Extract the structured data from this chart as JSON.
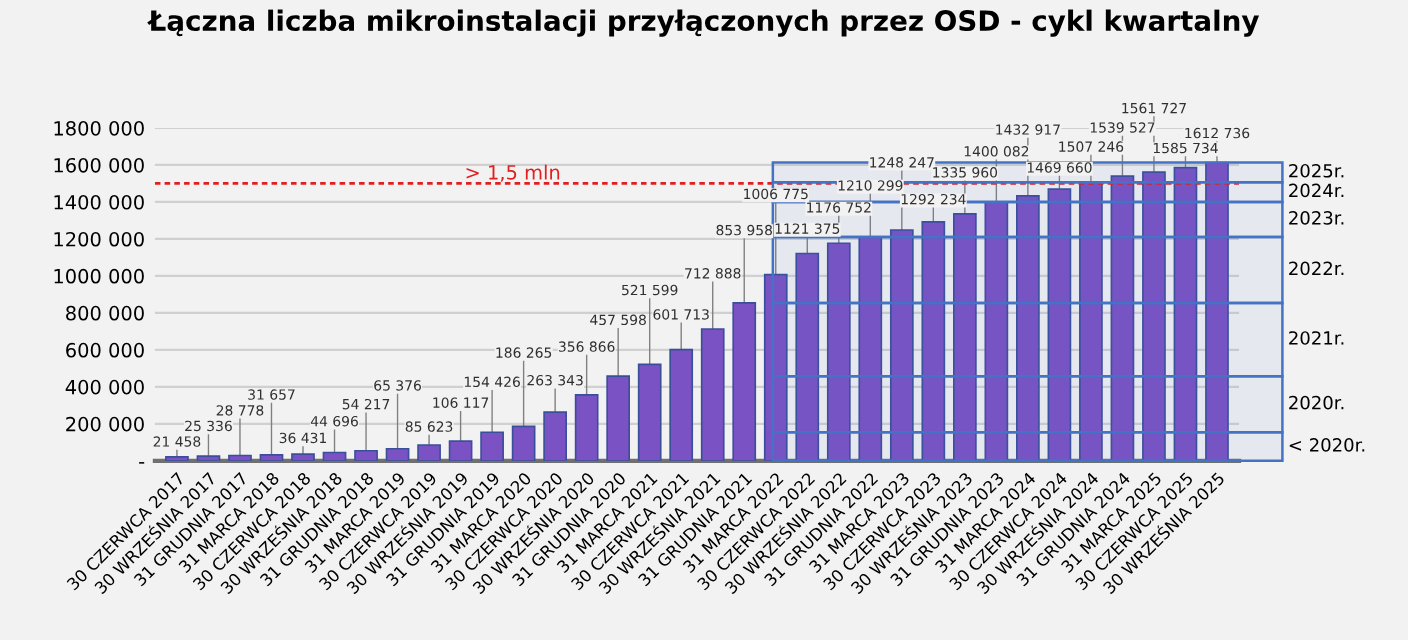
{
  "chart_data": {
    "type": "bar",
    "title": "Łączna liczba mikroinstalacji przyłączonych przez OSD - cykl kwartalny",
    "categories": [
      "30 CZERWCA 2017",
      "30 WRZEŚNIA 2017",
      "31 GRUDNIA 2017",
      "31 MARCA 2018",
      "30 CZERWCA 2018",
      "30 WRZEŚNIA 2018",
      "31 GRUDNIA 2018",
      "31 MARCA 2019",
      "30 CZERWCA 2019",
      "30 WRZEŚNIA 2019",
      "31 GRUDNIA 2019",
      "31 MARCA 2020",
      "30 CZERWCA 2020",
      "30 WRZEŚNIA 2020",
      "31 GRUDNIA 2020",
      "31 MARCA 2021",
      "30 CZERWCA 2021",
      "30 WRZEŚNIA 2021",
      "31 GRUDNIA 2021",
      "31 MARCA 2022",
      "30 CZERWCA 2022",
      "30 WRZEŚNIA 2022",
      "31 GRUDNIA 2022",
      "31 MARCA 2023",
      "30 CZERWCA 2023",
      "30 WRZEŚNIA 2023",
      "31 GRUDNIA 2023",
      "31 MARCA 2024",
      "30 CZERWCA 2024",
      "30 WRZEŚNIA 2024",
      "31 GRUDNIA 2024",
      "31 MARCA 2025",
      "30 CZERWCA 2025",
      "30 WRZEŚNIA 2025"
    ],
    "values": [
      21458,
      25336,
      28778,
      31657,
      36431,
      44696,
      54217,
      65376,
      85623,
      106117,
      154426,
      186265,
      263343,
      356866,
      457598,
      521599,
      601713,
      712888,
      853958,
      1006775,
      1121375,
      1176752,
      1210299,
      1248247,
      1292234,
      1335960,
      1400082,
      1432917,
      1469660,
      1507246,
      1539527,
      1561727,
      1585734,
      1612736
    ],
    "value_labels": [
      "21 458",
      "25 336",
      "28 778",
      "31 657",
      "36 431",
      "44 696",
      "54 217",
      "65 376",
      "85 623",
      "106 117",
      "154 426",
      "186 265",
      "263 343",
      "356 866",
      "457 598",
      "521 599",
      "601 713",
      "712 888",
      "853 958",
      "1006 775",
      "1121 375",
      "1176 752",
      "1210 299",
      "1248 247",
      "1292 234",
      "1335 960",
      "1400 082",
      "1432 917",
      "1469 660",
      "1507 246",
      "1539 527",
      "1561 727",
      "1585 734",
      "1612 736"
    ],
    "color": "#7b52c4",
    "ylim": [
      0,
      1800000
    ],
    "yticks": [
      {
        "value": 0,
        "label": "-"
      },
      {
        "value": 200000,
        "label": "200 000"
      },
      {
        "value": 400000,
        "label": "400 000"
      },
      {
        "value": 600000,
        "label": "600 000"
      },
      {
        "value": 800000,
        "label": "800 000"
      },
      {
        "value": 1000000,
        "label": "1000 000"
      },
      {
        "value": 1200000,
        "label": "1200 000"
      },
      {
        "value": 1400000,
        "label": "1400 000"
      },
      {
        "value": 1600000,
        "label": "1600 000"
      },
      {
        "value": 1800000,
        "label": "1800 000"
      }
    ],
    "grid": "y",
    "ref_lines": [
      {
        "axis": "y",
        "value": 1500000,
        "label": "> 1,5 mln",
        "color": "#e02020",
        "line_style": "dashed"
      }
    ],
    "bands": [
      {
        "axis": "y",
        "from": 0,
        "to": 154426,
        "label": "< 2020r.",
        "color": "#4472c4"
      },
      {
        "axis": "y",
        "from": 154426,
        "to": 457598,
        "label": "2020r.",
        "color": "#4472c4"
      },
      {
        "axis": "y",
        "from": 457598,
        "to": 853958,
        "label": "2021r.",
        "color": "#4472c4"
      },
      {
        "axis": "y",
        "from": 853958,
        "to": 1210299,
        "label": "2022r.",
        "color": "#4472c4"
      },
      {
        "axis": "y",
        "from": 1210299,
        "to": 1400082,
        "label": "2023r.",
        "color": "#4472c4"
      },
      {
        "axis": "y",
        "from": 1400082,
        "to": 1507246,
        "label": "2024r.",
        "color": "#4472c4"
      },
      {
        "axis": "y",
        "from": 1507246,
        "to": 1612736,
        "label": "2025r.",
        "color": "#4472c4"
      }
    ]
  }
}
